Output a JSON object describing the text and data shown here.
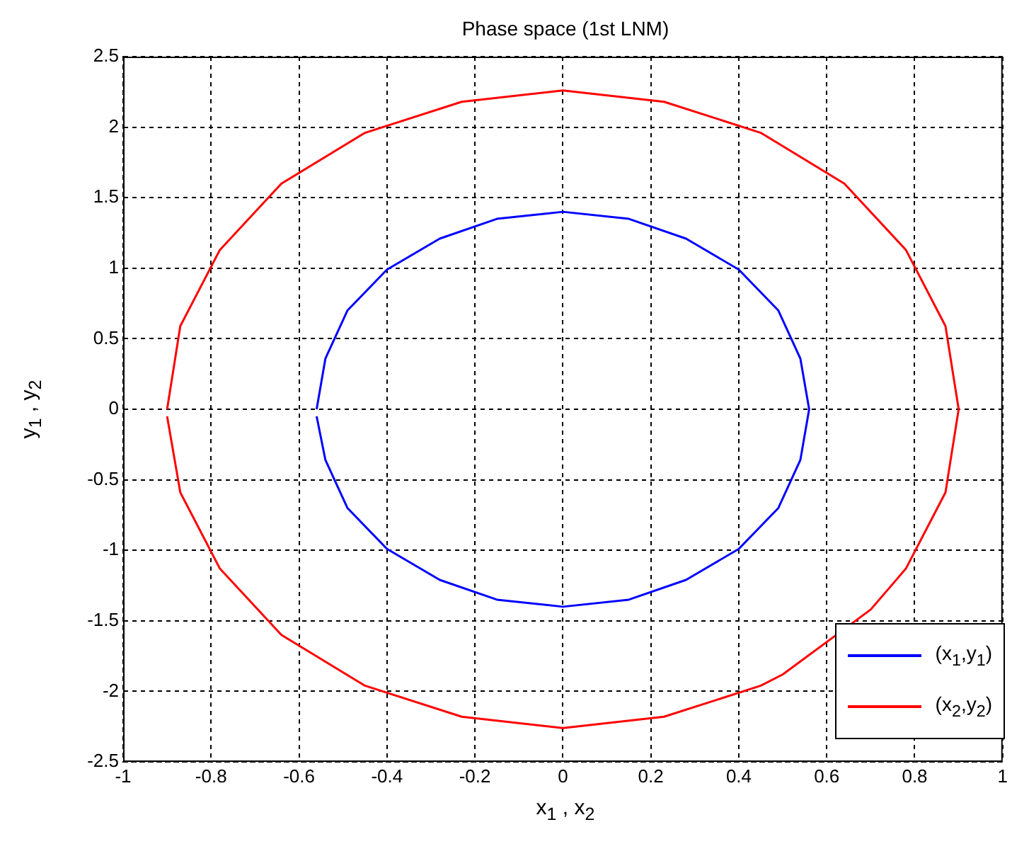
{
  "chart_data": {
    "type": "line",
    "title": "Phase space (1st LNM)",
    "xlabel": "x$_{1}$ , x$_{2}$",
    "ylabel": "y$_{1}$ , y$_{2}$",
    "xlim": [
      -1,
      1
    ],
    "xticks": [
      -1,
      -0.8,
      -0.6,
      -0.4,
      -0.2,
      0,
      0.2,
      0.4,
      0.6,
      0.8,
      1
    ],
    "ylim": [
      -2.5,
      2.5
    ],
    "yticks": [
      -2.5,
      -2,
      -1.5,
      -1,
      -0.5,
      0,
      0.5,
      1,
      1.5,
      2,
      2.5
    ],
    "grid": true,
    "legend": "bottom right",
    "marker": "none",
    "line_style": "solid",
    "series": [
      {
        "name": "(x$_{1}$,y$_{1}$)",
        "color": "#0000ff",
        "x": [
          -0.56,
          -0.54,
          -0.49,
          -0.4,
          -0.28,
          -0.15,
          0,
          0.15,
          0.28,
          0.4,
          0.49,
          0.54,
          0.56,
          0.54,
          0.49,
          0.4,
          0.28,
          0.15,
          0,
          -0.15,
          -0.28,
          -0.4,
          -0.49,
          -0.54,
          -0.56
        ],
        "values": [
          0,
          0.36,
          0.7,
          0.99,
          1.21,
          1.35,
          1.4,
          1.35,
          1.21,
          0.99,
          0.7,
          0.36,
          0,
          -0.36,
          -0.7,
          -0.99,
          -1.21,
          -1.35,
          -1.4,
          -1.35,
          -1.21,
          -0.99,
          -0.7,
          -0.36,
          -0.05
        ]
      },
      {
        "name": "(x$_{2}$,y$_{2}$)",
        "color": "#ff0000",
        "x": [
          -0.9,
          -0.87,
          -0.78,
          -0.64,
          -0.45,
          -0.23,
          0,
          0.23,
          0.45,
          0.64,
          0.78,
          0.87,
          0.9,
          0.87,
          0.78,
          0.7,
          0.5,
          0.45,
          0.23,
          0,
          -0.23,
          -0.45,
          -0.64,
          -0.78,
          -0.87,
          -0.9
        ],
        "values": [
          0,
          0.59,
          1.13,
          1.6,
          1.96,
          2.18,
          2.26,
          2.18,
          1.96,
          1.6,
          1.13,
          0.59,
          0,
          -0.59,
          -1.13,
          -1.42,
          -1.88,
          -1.96,
          -2.18,
          -2.26,
          -2.18,
          -1.96,
          -1.6,
          -1.13,
          -0.59,
          -0.05
        ]
      }
    ]
  }
}
